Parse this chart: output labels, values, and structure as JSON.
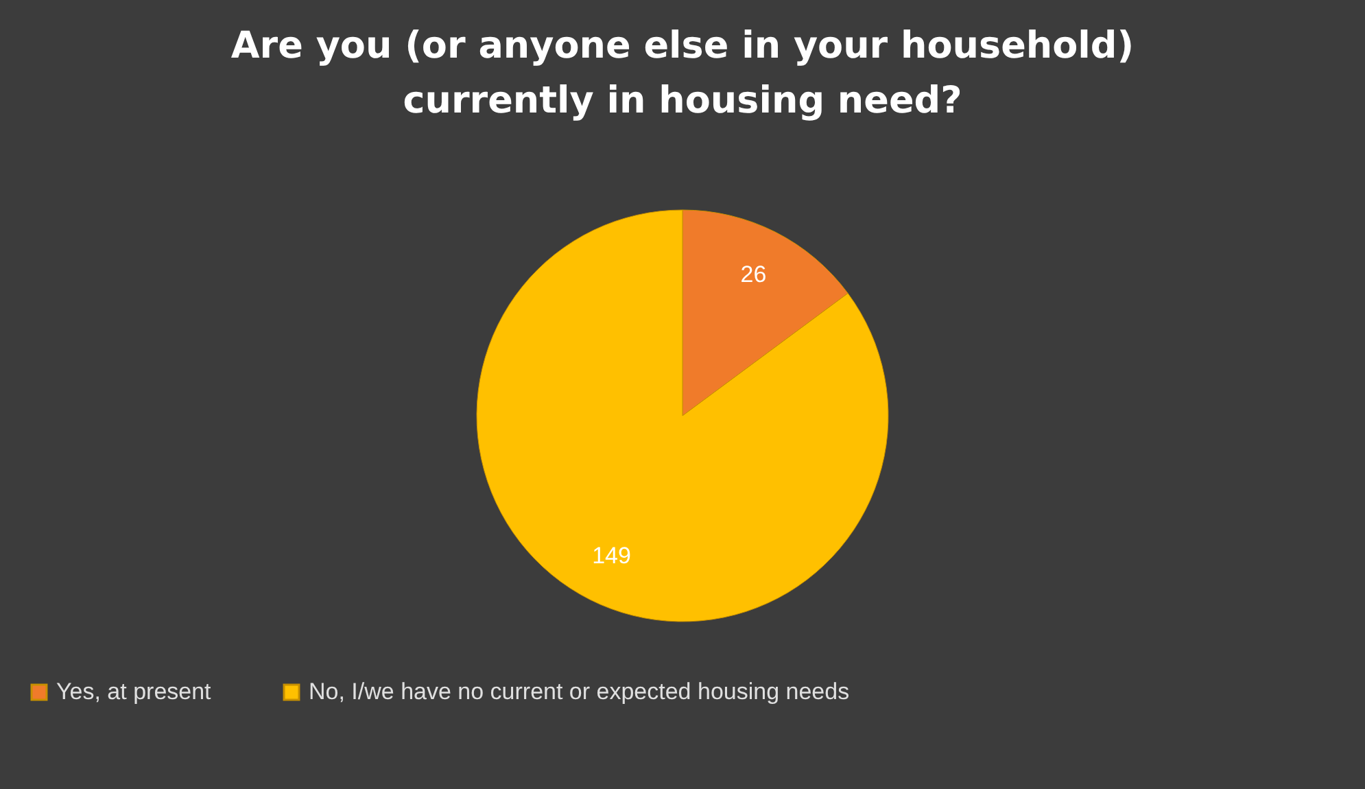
{
  "chart_data": {
    "type": "pie",
    "title": "Are you (or anyone else in your household) currently in housing need?",
    "categories": [
      "Yes, at present",
      "No, I/we have no current or expected housing needs"
    ],
    "values": [
      26,
      149
    ],
    "colors": [
      "#f07b2a",
      "#ffc000"
    ],
    "data_labels": true,
    "legend": "bottom"
  }
}
